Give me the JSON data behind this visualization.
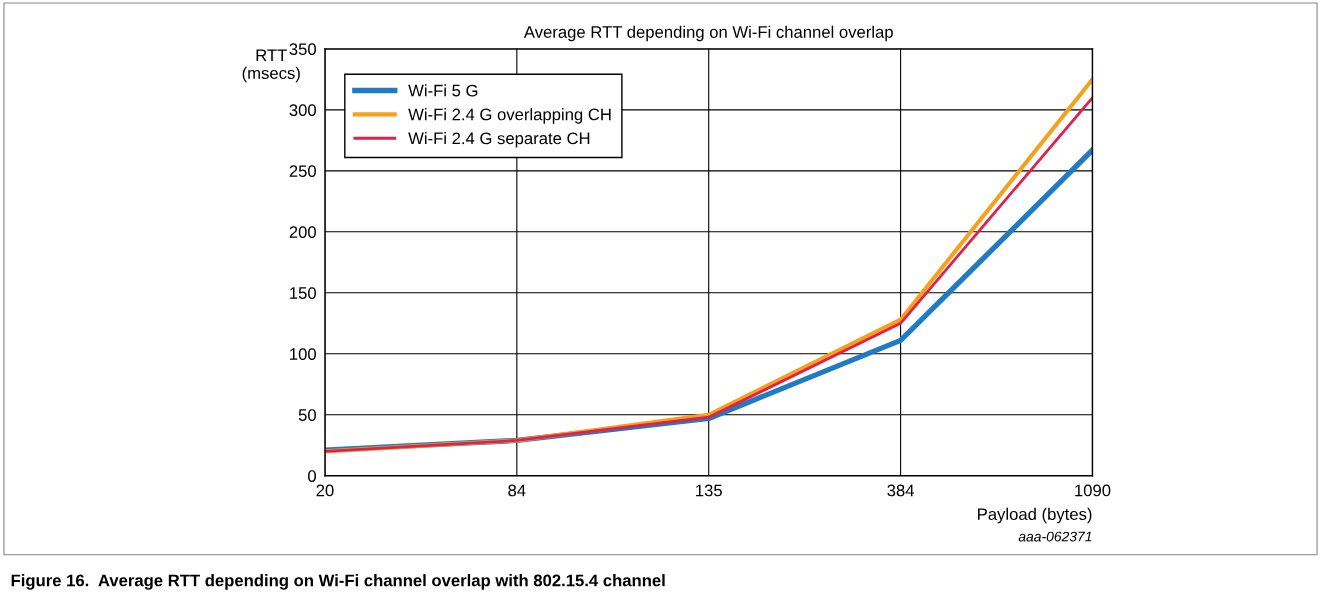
{
  "chart_data": {
    "type": "line",
    "title": "Average RTT depending on Wi-Fi channel overlap",
    "xlabel": "Payload (bytes)",
    "ylabel": "RTT\n(msecs)",
    "categories": [
      "20",
      "84",
      "135",
      "384",
      "1090"
    ],
    "series": [
      {
        "name": "Wi-Fi 5 G",
        "color": "#1f7cc4",
        "values": [
          21,
          29,
          47,
          111,
          267
        ]
      },
      {
        "name": "Wi-Fi 2.4 G overlapping CH",
        "color": "#f7a11a",
        "values": [
          20,
          29,
          50,
          128,
          325
        ]
      },
      {
        "name": "Wi-Fi 2.4 G separate CH",
        "color": "#e0204d",
        "values": [
          20,
          29,
          48,
          125,
          310
        ]
      }
    ],
    "ylim": [
      0,
      350
    ],
    "yticks": [
      0,
      50,
      100,
      150,
      200,
      250,
      300,
      350
    ],
    "grid": true,
    "legend": "top left",
    "annotations": [
      "aaa-062371",
      "Figure 16.  Average RTT depending on Wi-Fi channel overlap with 802.15.4 channel"
    ]
  }
}
